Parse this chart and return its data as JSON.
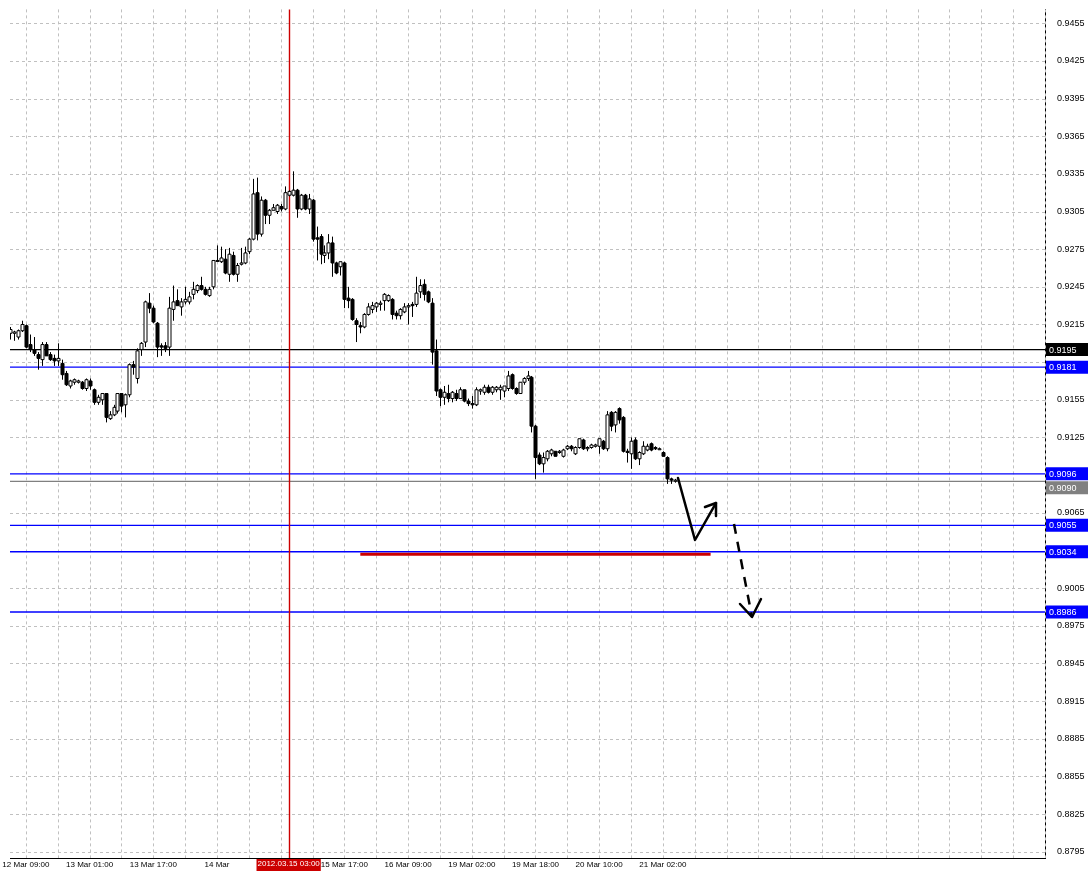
{
  "chart_data": {
    "type": "candlestick",
    "categories": [
      null,
      null,
      null,
      null,
      "12 Mar 09:00",
      null,
      null,
      null,
      null,
      null,
      null,
      null,
      null,
      null,
      null,
      null,
      null,
      null,
      null,
      null,
      "13 Mar 01:00",
      null,
      null,
      null,
      null,
      null,
      null,
      null,
      null,
      null,
      null,
      null,
      null,
      null,
      null,
      null,
      "13 Mar 17:00",
      null,
      null,
      null,
      null,
      null,
      null,
      null,
      null,
      null,
      null,
      null,
      null,
      null,
      null,
      null,
      "14 Mar",
      null,
      null,
      null,
      null,
      null,
      null,
      null,
      null,
      null,
      null,
      null,
      null,
      null,
      null,
      null,
      null,
      null,
      "2012.03.15 03:00",
      null,
      null,
      null,
      null,
      null,
      null,
      null,
      null,
      null,
      null,
      null,
      null,
      null,
      "15 Mar 17:00",
      null,
      null,
      null,
      null,
      null,
      null,
      null,
      null,
      null,
      null,
      null,
      null,
      null,
      null,
      null,
      "16 Mar 09:00",
      null,
      null,
      null,
      null,
      null,
      null,
      null,
      null,
      null,
      null,
      null,
      null,
      null,
      null,
      null,
      "19 Mar 02:00",
      null,
      null,
      null,
      null,
      null,
      null,
      null,
      null,
      null,
      null,
      null,
      null,
      null,
      null,
      null,
      "19 Mar 18:00",
      null,
      null,
      null,
      null,
      null,
      null,
      null,
      null,
      null,
      null,
      null,
      null,
      null,
      null,
      null,
      "20 Mar 10:00",
      null,
      null,
      null,
      null,
      null,
      null,
      null,
      null,
      null,
      null,
      null,
      null,
      null,
      null,
      null,
      "21 Mar 02:00",
      null,
      null,
      null,
      null,
      null,
      null,
      null,
      null,
      null,
      null,
      null,
      null,
      null,
      null,
      null,
      null,
      null,
      null,
      null,
      null,
      null,
      null,
      null,
      null,
      null,
      null,
      null,
      null,
      null,
      null,
      null,
      null,
      null,
      null,
      null,
      null,
      null,
      null,
      null,
      null,
      null,
      null,
      null,
      null,
      null,
      null,
      null,
      null,
      null,
      null,
      null,
      null,
      null,
      null,
      null,
      null,
      null,
      null,
      null,
      null,
      null,
      null,
      null,
      null,
      null,
      null,
      null,
      null,
      null,
      null,
      null,
      null,
      null,
      null,
      null,
      null,
      null,
      null,
      null,
      null,
      null,
      null,
      null,
      null,
      null,
      null,
      null,
      null,
      null,
      null,
      null,
      null,
      null,
      null,
      null,
      null
    ],
    "ohlc": [
      [
        0.9208,
        0.9213,
        0.9203,
        0.9211
      ],
      [
        0.9208,
        0.921,
        0.9202,
        0.9209
      ],
      [
        0.9205,
        0.9211,
        0.9203,
        0.921
      ],
      [
        0.921,
        0.9218,
        0.9209,
        0.9215
      ],
      [
        0.9214,
        0.9215,
        0.9196,
        0.9197
      ],
      [
        0.9199,
        0.9207,
        0.9193,
        0.9195
      ],
      [
        0.9195,
        0.9205,
        0.919,
        0.9192
      ],
      [
        0.9191,
        0.9193,
        0.9179,
        0.9188
      ],
      [
        0.9187,
        0.9201,
        0.9182,
        0.9199
      ],
      [
        0.9199,
        0.9201,
        0.919,
        0.919
      ],
      [
        0.9191,
        0.9193,
        0.9186,
        0.9187
      ],
      [
        0.9188,
        0.9191,
        0.9182,
        0.9186
      ],
      [
        0.9186,
        0.92,
        0.9182,
        0.9188
      ],
      [
        0.9184,
        0.9187,
        0.9171,
        0.9175
      ],
      [
        0.9176,
        0.9178,
        0.9166,
        0.9167
      ],
      [
        0.9166,
        0.9171,
        0.9164,
        0.917
      ],
      [
        0.9169,
        0.9172,
        0.9167,
        0.9171
      ],
      [
        0.9169,
        0.9171,
        0.9168,
        0.917
      ],
      [
        0.9169,
        0.917,
        0.9163,
        0.9164
      ],
      [
        0.9164,
        0.9172,
        0.9162,
        0.9171
      ],
      [
        0.917,
        0.9172,
        0.9163,
        0.9166
      ],
      [
        0.9163,
        0.9164,
        0.9151,
        0.9153
      ],
      [
        0.9153,
        0.9159,
        0.9151,
        0.9157
      ],
      [
        0.9155,
        0.916,
        0.9151,
        0.916
      ],
      [
        0.916,
        0.916,
        0.9137,
        0.9141
      ],
      [
        0.914,
        0.9146,
        0.9139,
        0.9143
      ],
      [
        0.9143,
        0.9151,
        0.9142,
        0.9149
      ],
      [
        0.9146,
        0.916,
        0.9144,
        0.916
      ],
      [
        0.916,
        0.916,
        0.9145,
        0.915
      ],
      [
        0.9151,
        0.916,
        0.9141,
        0.9159
      ],
      [
        0.9159,
        0.9184,
        0.9157,
        0.9183
      ],
      [
        0.9183,
        0.9186,
        0.9175,
        0.9181
      ],
      [
        0.9172,
        0.9196,
        0.9168,
        0.9194
      ],
      [
        0.9195,
        0.9201,
        0.919,
        0.92
      ],
      [
        0.9201,
        0.9234,
        0.9197,
        0.9233
      ],
      [
        0.9232,
        0.924,
        0.9224,
        0.9228
      ],
      [
        0.9228,
        0.923,
        0.9216,
        0.9217
      ],
      [
        0.9216,
        0.9217,
        0.9189,
        0.9197
      ],
      [
        0.9198,
        0.92,
        0.919,
        0.9197
      ],
      [
        0.9198,
        0.9201,
        0.9193,
        0.9196
      ],
      [
        0.9197,
        0.9237,
        0.919,
        0.9228
      ],
      [
        0.9227,
        0.9246,
        0.9218,
        0.9233
      ],
      [
        0.9234,
        0.9243,
        0.923,
        0.923
      ],
      [
        0.9229,
        0.9236,
        0.9222,
        0.9233
      ],
      [
        0.9233,
        0.9245,
        0.9231,
        0.9235
      ],
      [
        0.9233,
        0.9241,
        0.9231,
        0.9237
      ],
      [
        0.9239,
        0.9249,
        0.9235,
        0.9243
      ],
      [
        0.9242,
        0.9247,
        0.924,
        0.9246
      ],
      [
        0.9246,
        0.9253,
        0.9242,
        0.9243
      ],
      [
        0.9243,
        0.9245,
        0.9238,
        0.9239
      ],
      [
        0.9238,
        0.9245,
        0.9237,
        0.9243
      ],
      [
        0.9245,
        0.9266,
        0.9243,
        0.9266
      ],
      [
        0.9266,
        0.9278,
        0.9265,
        0.9266
      ],
      [
        0.9265,
        0.9277,
        0.9264,
        0.9268
      ],
      [
        0.9267,
        0.9275,
        0.9255,
        0.9256
      ],
      [
        0.9255,
        0.9276,
        0.9249,
        0.9271
      ],
      [
        0.927,
        0.9273,
        0.9254,
        0.9255
      ],
      [
        0.9255,
        0.9264,
        0.9249,
        0.9262
      ],
      [
        0.9263,
        0.9276,
        0.9262,
        0.9264
      ],
      [
        0.9264,
        0.9277,
        0.9263,
        0.9272
      ],
      [
        0.9273,
        0.9284,
        0.9271,
        0.9283
      ],
      [
        0.9283,
        0.9331,
        0.9282,
        0.9319
      ],
      [
        0.932,
        0.9332,
        0.9282,
        0.9287
      ],
      [
        0.9287,
        0.9317,
        0.9285,
        0.9314
      ],
      [
        0.9314,
        0.9315,
        0.9295,
        0.9302
      ],
      [
        0.9302,
        0.9307,
        0.9295,
        0.9306
      ],
      [
        0.9306,
        0.9311,
        0.9306,
        0.9308
      ],
      [
        0.9305,
        0.9311,
        0.9303,
        0.931
      ],
      [
        0.9309,
        0.9311,
        0.9305,
        0.9307
      ],
      [
        0.9307,
        0.9325,
        0.9306,
        0.932
      ],
      [
        0.9318,
        0.9322,
        0.9317,
        0.9321
      ],
      [
        0.9318,
        0.9337,
        0.9317,
        0.9322
      ],
      [
        0.9322,
        0.9323,
        0.93,
        0.9307
      ],
      [
        0.9307,
        0.9319,
        0.9306,
        0.9318
      ],
      [
        0.9318,
        0.9319,
        0.9306,
        0.9307
      ],
      [
        0.9307,
        0.9319,
        0.9303,
        0.9315
      ],
      [
        0.9314,
        0.9315,
        0.9281,
        0.9283
      ],
      [
        0.9284,
        0.9293,
        0.9266,
        0.9283
      ],
      [
        0.9285,
        0.9287,
        0.9263,
        0.9271
      ],
      [
        0.927,
        0.9278,
        0.9264,
        0.9272
      ],
      [
        0.9272,
        0.9287,
        0.9267,
        0.928
      ],
      [
        0.928,
        0.9285,
        0.9253,
        0.9264
      ],
      [
        0.9264,
        0.9265,
        0.9255,
        0.9256
      ],
      [
        0.9261,
        0.9265,
        0.9254,
        0.9265
      ],
      [
        0.9264,
        0.9265,
        0.9228,
        0.9235
      ],
      [
        0.9236,
        0.9245,
        0.9228,
        0.9234
      ],
      [
        0.9235,
        0.9236,
        0.9218,
        0.9219
      ],
      [
        0.9218,
        0.922,
        0.9201,
        0.9215
      ],
      [
        0.9214,
        0.9217,
        0.9208,
        0.9213
      ],
      [
        0.9213,
        0.9224,
        0.9212,
        0.9223
      ],
      [
        0.9223,
        0.9232,
        0.9222,
        0.9229
      ],
      [
        0.9227,
        0.9233,
        0.9224,
        0.923
      ],
      [
        0.9229,
        0.9233,
        0.9225,
        0.9232
      ],
      [
        0.9231,
        0.9234,
        0.9226,
        0.9232
      ],
      [
        0.9234,
        0.924,
        0.9226,
        0.9239
      ],
      [
        0.9234,
        0.9239,
        0.9233,
        0.9238
      ],
      [
        0.9235,
        0.9236,
        0.9219,
        0.9223
      ],
      [
        0.9224,
        0.9226,
        0.9219,
        0.9222
      ],
      [
        0.9222,
        0.9228,
        0.9219,
        0.9227
      ],
      [
        0.9225,
        0.9232,
        0.9224,
        0.9229
      ],
      [
        0.9229,
        0.9232,
        0.9215,
        0.923
      ],
      [
        0.9231,
        0.9233,
        0.9221,
        0.923
      ],
      [
        0.9231,
        0.9253,
        0.9229,
        0.924
      ],
      [
        0.9241,
        0.9251,
        0.9236,
        0.9246
      ],
      [
        0.9247,
        0.9251,
        0.9234,
        0.9239
      ],
      [
        0.9241,
        0.9242,
        0.9232,
        0.9233
      ],
      [
        0.9232,
        0.9236,
        0.9183,
        0.9193
      ],
      [
        0.9194,
        0.9203,
        0.9158,
        0.9162
      ],
      [
        0.9163,
        0.9164,
        0.915,
        0.9157
      ],
      [
        0.9157,
        0.9166,
        0.9151,
        0.9161
      ],
      [
        0.916,
        0.9167,
        0.9153,
        0.9156
      ],
      [
        0.9156,
        0.9162,
        0.9153,
        0.9161
      ],
      [
        0.916,
        0.9163,
        0.9154,
        0.9156
      ],
      [
        0.9156,
        0.9165,
        0.9156,
        0.9163
      ],
      [
        0.9163,
        0.9163,
        0.9153,
        0.9154
      ],
      [
        0.9154,
        0.9156,
        0.915,
        0.9152
      ],
      [
        0.9152,
        0.9158,
        0.9148,
        0.9151
      ],
      [
        0.9151,
        0.9165,
        0.915,
        0.9163
      ],
      [
        0.9162,
        0.9164,
        0.9159,
        0.9163
      ],
      [
        0.9161,
        0.9167,
        0.9159,
        0.9165
      ],
      [
        0.9165,
        0.9167,
        0.916,
        0.9161
      ],
      [
        0.9161,
        0.9166,
        0.9159,
        0.9165
      ],
      [
        0.9163,
        0.9166,
        0.9161,
        0.9165
      ],
      [
        0.9163,
        0.9167,
        0.9155,
        0.9165
      ],
      [
        0.9162,
        0.9166,
        0.9157,
        0.9166
      ],
      [
        0.9164,
        0.9178,
        0.9162,
        0.9174
      ],
      [
        0.9175,
        0.9176,
        0.9163,
        0.9164
      ],
      [
        0.9164,
        0.9165,
        0.9159,
        0.916
      ],
      [
        0.916,
        0.9169,
        0.916,
        0.9169
      ],
      [
        0.9169,
        0.9173,
        0.9167,
        0.9172
      ],
      [
        0.9172,
        0.9178,
        0.917,
        0.9174
      ],
      [
        0.9173,
        0.9174,
        0.9129,
        0.9134
      ],
      [
        0.9134,
        0.9135,
        0.9092,
        0.9109
      ],
      [
        0.9111,
        0.9113,
        0.9103,
        0.9104
      ],
      [
        0.9104,
        0.9113,
        0.9097,
        0.9109
      ],
      [
        0.9108,
        0.9115,
        0.9106,
        0.9114
      ],
      [
        0.9112,
        0.9116,
        0.911,
        0.9115
      ],
      [
        0.9114,
        0.9114,
        0.911,
        0.911
      ],
      [
        0.9113,
        0.9115,
        0.9112,
        0.9114
      ],
      [
        0.911,
        0.9116,
        0.9109,
        0.9115
      ],
      [
        0.9116,
        0.9119,
        0.9115,
        0.9118
      ],
      [
        0.9118,
        0.9119,
        0.9114,
        0.9116
      ],
      [
        0.9112,
        0.9118,
        0.9111,
        0.9117
      ],
      [
        0.9117,
        0.9124,
        0.9116,
        0.9124
      ],
      [
        0.9123,
        0.9124,
        0.9115,
        0.9116
      ],
      [
        0.9116,
        0.9118,
        0.9114,
        0.9117
      ],
      [
        0.9117,
        0.912,
        0.9116,
        0.9119
      ],
      [
        0.9118,
        0.912,
        0.9117,
        0.9119
      ],
      [
        0.9118,
        0.9124,
        0.9112,
        0.9124
      ],
      [
        0.9122,
        0.9123,
        0.9115,
        0.9116
      ],
      [
        0.9116,
        0.9146,
        0.9114,
        0.9143
      ],
      [
        0.9145,
        0.9146,
        0.913,
        0.9134
      ],
      [
        0.9135,
        0.9146,
        0.9129,
        0.9145
      ],
      [
        0.9148,
        0.9149,
        0.9136,
        0.9139
      ],
      [
        0.9141,
        0.9142,
        0.9113,
        0.9114
      ],
      [
        0.9114,
        0.9116,
        0.9105,
        0.9113
      ],
      [
        0.9112,
        0.9125,
        0.91,
        0.9122
      ],
      [
        0.9123,
        0.9125,
        0.9107,
        0.9108
      ],
      [
        0.9108,
        0.9114,
        0.9103,
        0.9113
      ],
      [
        0.9112,
        0.9122,
        0.9111,
        0.9118
      ],
      [
        0.9115,
        0.912,
        0.9114,
        0.9118
      ],
      [
        0.912,
        0.9121,
        0.9114,
        0.9115
      ],
      [
        0.9117,
        0.9118,
        0.9115,
        0.9116
      ],
      [
        0.9116,
        0.9117,
        0.9115,
        0.9116
      ],
      [
        0.9113,
        0.9114,
        0.911,
        0.911
      ],
      [
        0.9109,
        0.911,
        0.9088,
        0.9092
      ],
      [
        0.9092,
        0.9093,
        0.9088,
        0.9091
      ],
      [
        0.9091,
        0.9092,
        0.9089,
        0.9091
      ],
      null,
      null,
      null,
      null,
      null,
      null,
      null,
      null,
      null,
      null,
      null,
      null,
      null,
      null,
      null,
      null,
      null,
      null,
      null,
      null,
      null,
      null,
      null,
      null,
      null,
      null,
      null,
      null,
      null,
      null,
      null,
      null,
      null,
      null,
      null,
      null,
      null,
      null,
      null,
      null,
      null,
      null,
      null,
      null,
      null,
      null,
      null,
      null,
      null,
      null,
      null,
      null,
      null,
      null,
      null,
      null,
      null,
      null,
      null,
      null,
      null,
      null,
      null,
      null,
      null,
      null,
      null,
      null,
      null,
      null,
      null,
      null,
      null,
      null,
      null,
      null,
      null,
      null,
      null,
      null,
      null,
      null,
      null,
      null,
      null,
      null,
      null,
      null,
      null,
      null,
      null,
      null,
      null
    ],
    "series": [
      {
        "type": "line",
        "color": "#cc0000",
        "values": [
          null,
          null,
          null,
          null,
          null,
          null,
          null,
          null,
          null,
          null,
          null,
          null,
          null,
          null,
          null,
          null,
          null,
          null,
          null,
          null,
          null,
          null,
          null,
          null,
          null,
          null,
          null,
          null,
          null,
          null,
          null,
          null,
          null,
          null,
          null,
          null,
          null,
          null,
          null,
          null,
          null,
          null,
          null,
          null,
          null,
          null,
          null,
          null,
          null,
          null,
          null,
          null,
          null,
          null,
          null,
          null,
          null,
          null,
          null,
          null,
          null,
          null,
          null,
          null,
          null,
          null,
          null,
          null,
          null,
          null,
          null,
          null,
          null,
          null,
          null,
          null,
          null,
          null,
          null,
          null,
          null,
          null,
          null,
          null,
          null,
          null,
          null,
          null,
          0.9032,
          null,
          null,
          null,
          null,
          null,
          null,
          null,
          null,
          null,
          null,
          null,
          null,
          null,
          null,
          null,
          null,
          null,
          null,
          null,
          null,
          null,
          null,
          null,
          null,
          null,
          null,
          null,
          null,
          null,
          null,
          null,
          null,
          null,
          null,
          null,
          null,
          null,
          null,
          null,
          null,
          null,
          null,
          null,
          null,
          null,
          null,
          null,
          null,
          null,
          null,
          null,
          null,
          null,
          null,
          null,
          null,
          null,
          null,
          null,
          null,
          null,
          null,
          null,
          null,
          null,
          null,
          null,
          null,
          null,
          null,
          null,
          null,
          null,
          null,
          null,
          null,
          null,
          null,
          null,
          null,
          null,
          null,
          null,
          null,
          null,
          null,
          null,
          0.9032,
          null,
          null,
          null,
          null,
          null,
          null,
          null,
          null,
          null,
          null,
          null,
          null,
          null,
          null,
          null,
          null,
          null,
          null,
          null,
          null,
          null,
          null,
          null,
          null,
          null,
          null,
          null,
          null,
          null,
          null,
          null,
          null,
          null,
          null,
          null,
          null,
          null,
          null,
          null,
          null,
          null,
          null,
          null,
          null,
          null,
          null,
          null,
          null,
          null,
          null,
          null,
          null,
          null,
          null,
          null,
          null,
          null,
          null,
          null,
          null,
          null,
          null,
          null,
          null,
          null,
          null,
          null,
          null,
          null,
          null,
          null,
          null,
          null,
          null,
          null,
          null,
          null,
          null,
          null,
          null,
          null,
          null,
          null,
          null
        ]
      }
    ],
    "ylim": [
      0.879,
      0.9466
    ],
    "yticks": [
      0.8795,
      0.8825,
      0.8855,
      0.8885,
      0.8915,
      0.8945,
      0.8975,
      0.9005,
      0.9065,
      0.9125,
      0.9155,
      {
        "value": 0.9185,
        "label": null
      },
      0.9215,
      0.9245,
      0.9275,
      0.9305,
      0.9335,
      0.9365,
      0.9395,
      0.9425,
      0.9455
    ],
    "grid": true,
    "ref_lines": [
      {
        "axis": "x",
        "value": "2012.03.15 03:00",
        "color": "#cc0000"
      },
      {
        "axis": "y",
        "value": 0.9195,
        "label": "0.9195",
        "color": "#000000"
      },
      {
        "axis": "y",
        "value": 0.9181,
        "label": "0.9181",
        "color": "#0000ff"
      },
      {
        "axis": "y",
        "value": 0.9096,
        "label": "0.9096",
        "color": "#0000ff"
      },
      {
        "axis": "y",
        "value": 0.909,
        "label": "0.9090",
        "color": "#808080"
      },
      {
        "axis": "y",
        "value": 0.9055,
        "label": "0.9055",
        "color": "#0000ff"
      },
      {
        "axis": "y",
        "value": 0.9034,
        "label": "0.9034",
        "color": "#0000ff"
      },
      {
        "axis": "y",
        "value": 0.8986,
        "label": "0.8986",
        "color": "#0000ff"
      }
    ]
  }
}
